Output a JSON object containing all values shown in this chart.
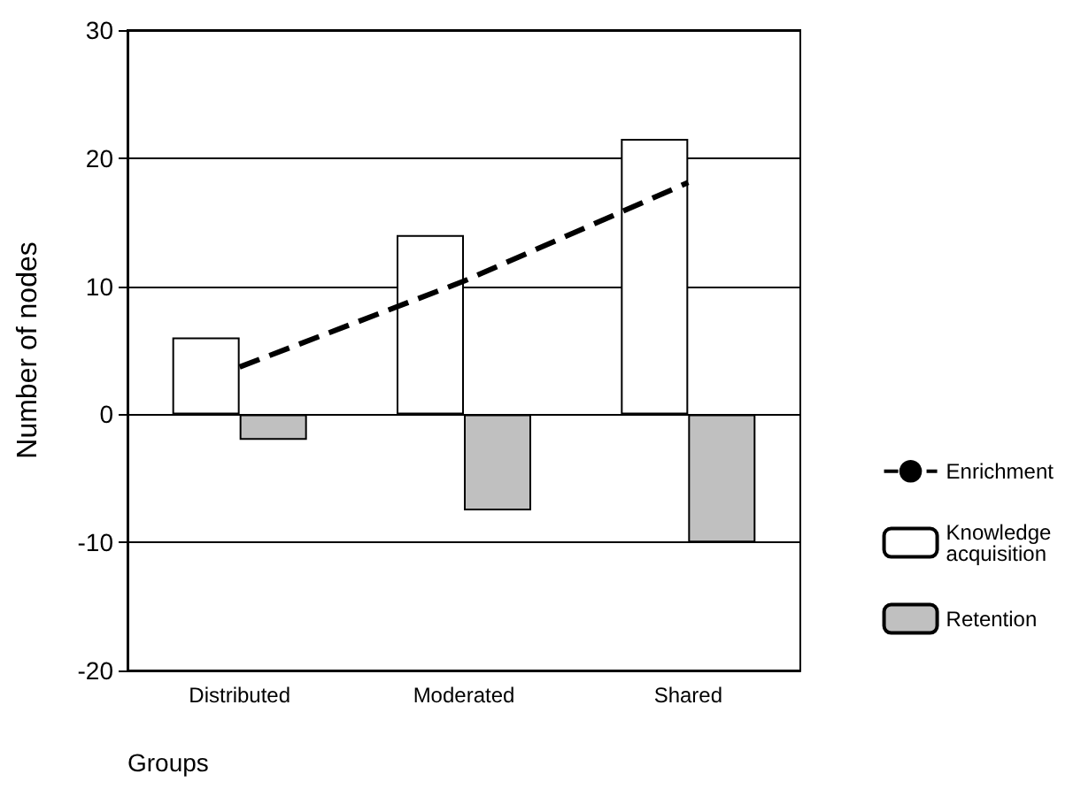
{
  "chart_data": {
    "type": "bar",
    "xlabel": "Groups",
    "ylabel": "Number of nodes",
    "categories": [
      "Distributed",
      "Moderated",
      "Shared"
    ],
    "series": [
      {
        "name": "Enrichment",
        "type": "line",
        "color": "#000000",
        "line_style": "dashed",
        "marker": "none",
        "values": [
          3.7,
          10.4,
          18.1
        ]
      },
      {
        "name": "Knowledge acquisition",
        "color": "#ffffff",
        "values": [
          6,
          14,
          21.5
        ]
      },
      {
        "name": "Retention",
        "color": "#c0c0c0",
        "values": [
          -2,
          -7.5,
          -10
        ]
      }
    ],
    "ylim": [
      -20,
      30
    ],
    "yticks": [
      -20,
      -10,
      0,
      10,
      20,
      30
    ],
    "grid": "y",
    "legend": "right"
  }
}
